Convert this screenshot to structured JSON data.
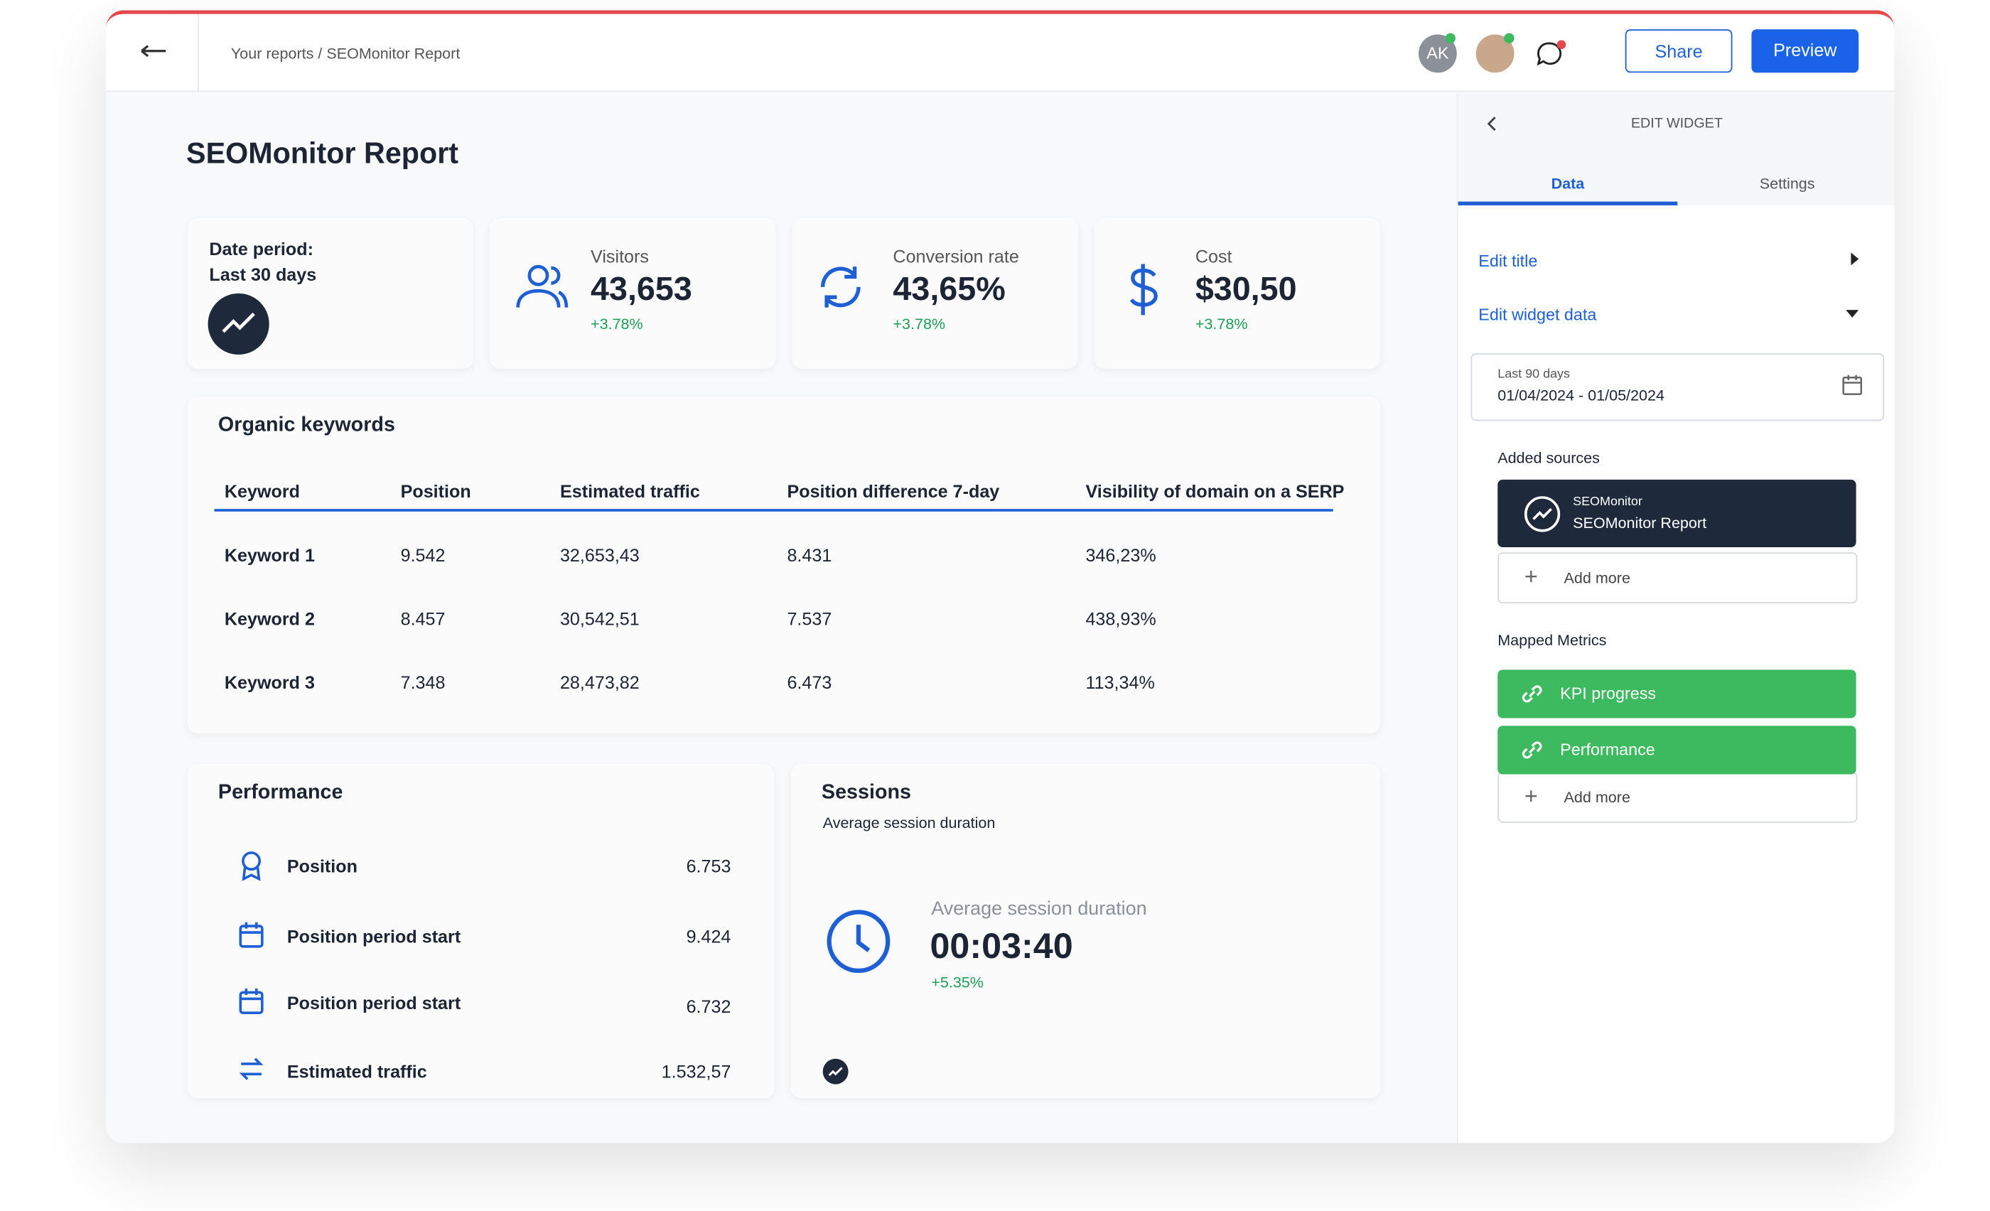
{
  "header": {
    "breadcrumb": "Your reports / SEOMonitor Report",
    "avatar": "AK",
    "share": "Share",
    "preview": "Preview"
  },
  "report": {
    "title": "SEOMonitor Report",
    "date_card": {
      "label": "Date period:",
      "value": "Last 30 days"
    },
    "kpis": [
      {
        "label": "Visitors",
        "value": "43,653",
        "change": "+3.78%"
      },
      {
        "label": "Conversion rate",
        "value": "43,65%",
        "change": "+3.78%"
      },
      {
        "label": "Cost",
        "value": "$30,50",
        "change": "+3.78%"
      }
    ],
    "keywords": {
      "title": "Organic keywords",
      "columns": [
        "Keyword",
        "Position",
        "Estimated traffic",
        "Position difference 7-day",
        "Visibility of domain on a SERP"
      ],
      "rows": [
        [
          "Keyword 1",
          "9.542",
          "32,653,43",
          "8.431",
          "346,23%"
        ],
        [
          "Keyword 2",
          "8.457",
          "30,542,51",
          "7.537",
          "438,93%"
        ],
        [
          "Keyword 3",
          "7.348",
          "28,473,82",
          "6.473",
          "113,34%"
        ]
      ]
    },
    "performance": {
      "title": "Performance",
      "items": [
        {
          "label": "Position",
          "value": "6.753"
        },
        {
          "label": "Position period start",
          "value": "9.424"
        },
        {
          "label": "Position period start",
          "value": "6.732"
        },
        {
          "label": "Estimated traffic",
          "value": "1.532,57"
        }
      ]
    },
    "sessions": {
      "title": "Sessions",
      "subtitle": "Average session duration",
      "label": "Average session duration",
      "value": "00:03:40",
      "change": "+5.35%"
    }
  },
  "panel": {
    "title": "EDIT WIDGET",
    "tabs": [
      "Data",
      "Settings"
    ],
    "edit_title": "Edit title",
    "edit_data": "Edit widget data",
    "date": {
      "label": "Last 90 days",
      "range": "01/04/2024 - 01/05/2024"
    },
    "sources_title": "Added sources",
    "source": {
      "type": "SEOMonitor",
      "name": "SEOMonitor Report"
    },
    "add_more_sources": "Add more",
    "metrics_title": "Mapped Metrics",
    "metrics": [
      "KPI progress",
      "Performance"
    ],
    "add_more_metrics": "Add more"
  }
}
